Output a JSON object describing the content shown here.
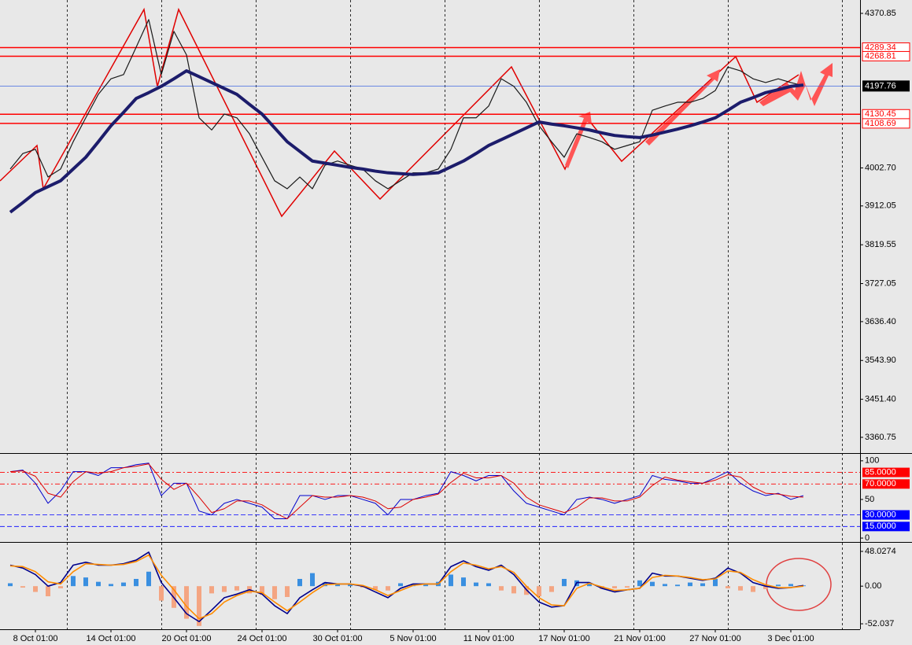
{
  "chart_data": [
    {
      "type": "line",
      "ylim": [
        3325.1,
        4402.7
      ],
      "yticks": [
        4370.85,
        {
          "value": 4002.7,
          "label": "4002.70"
        },
        3912.05,
        3819.55,
        3727.05,
        {
          "value": 3636.4,
          "label": "3636.40"
        },
        {
          "value": 3543.9,
          "label": "3543.90"
        },
        {
          "value": 3451.4,
          "label": "3451.40"
        },
        3360.75
      ],
      "series": [
        {
          "color": "#1a1a1a",
          "width": 1.2,
          "values": [
            4000,
            4037,
            4047,
            3981,
            4000,
            4065,
            4122,
            4178,
            4215,
            4225,
            4290,
            4356,
            4225,
            4328,
            4272,
            4122,
            4093,
            4131,
            4122,
            4084,
            4028,
            3972,
            3953,
            3981,
            3953,
            4009,
            4019,
            4009,
            4000,
            3972,
            3953,
            3972,
            3991,
            3991,
            4000,
            4047,
            4122,
            4122,
            4150,
            4215,
            4197,
            4159,
            4103,
            4065,
            4028,
            4084,
            4075,
            4065,
            4047,
            4056,
            4065,
            4140,
            4150,
            4159,
            4159,
            4168,
            4187,
            4243,
            4234,
            4215,
            4206,
            4215,
            4206,
            4198
          ]
        },
        {
          "color": "#1c1c6b",
          "width": 4,
          "values": [
            3897,
            3920,
            3944,
            3958,
            3972,
            4000,
            4028,
            4065,
            4103,
            4135,
            4168,
            4182,
            4197,
            4215,
            4234,
            4220,
            4206,
            4192,
            4178,
            4154,
            4131,
            4098,
            4065,
            4042,
            4019,
            4014,
            4009,
            4004,
            4000,
            3995,
            3991,
            3989,
            3987,
            3989,
            3991,
            4005,
            4019,
            4037,
            4056,
            4070,
            4084,
            4098,
            4112,
            4107,
            4103,
            4098,
            4093,
            4086,
            4080,
            4077,
            4075,
            4081,
            4088,
            4095,
            4103,
            4112,
            4122,
            4140,
            4159,
            4170,
            4182,
            4189,
            4197,
            4200
          ]
        }
      ],
      "levels": [
        4289.34,
        4268.81,
        4130.45,
        4108.69
      ],
      "level_color": "#ff0000",
      "last_price": 4197.76,
      "last_price_color": "#4169e1"
    },
    {
      "type": "line",
      "ylim": [
        -4,
        109
      ],
      "yticks": [
        100,
        50,
        0
      ],
      "series": [
        {
          "color": "#0000cc",
          "width": 1,
          "values": [
            86,
            88,
            71,
            45,
            61,
            86,
            86,
            81,
            91,
            91,
            95,
            97,
            55,
            71,
            71,
            35,
            30,
            45,
            50,
            45,
            40,
            25,
            25,
            55,
            55,
            50,
            55,
            55,
            50,
            45,
            30,
            50,
            50,
            55,
            58,
            86,
            81,
            74,
            81,
            81,
            61,
            45,
            40,
            35,
            30,
            50,
            53,
            50,
            45,
            50,
            55,
            81,
            76,
            74,
            71,
            71,
            78,
            86,
            71,
            61,
            55,
            58,
            50,
            55
          ]
        },
        {
          "color": "#dd0000",
          "width": 1,
          "values": [
            86,
            87,
            80,
            58,
            53,
            73,
            86,
            84,
            86,
            91,
            93,
            96,
            76,
            63,
            71,
            53,
            33,
            38,
            48,
            48,
            43,
            33,
            25,
            40,
            55,
            53,
            53,
            55,
            53,
            48,
            38,
            40,
            50,
            53,
            57,
            72,
            84,
            78,
            78,
            81,
            71,
            53,
            43,
            38,
            33,
            40,
            52,
            52,
            48,
            48,
            53,
            68,
            79,
            75,
            73,
            71,
            75,
            82,
            79,
            66,
            58,
            57,
            54,
            53
          ]
        }
      ],
      "levels": [
        {
          "value": 85,
          "label": "85.0000",
          "color": "#ff0000"
        },
        {
          "value": 70,
          "label": "70.0000",
          "color": "#ff0000"
        },
        {
          "value": 30,
          "label": "30.0000",
          "color": "#0000ff"
        },
        {
          "value": 15,
          "label": "15.0000",
          "color": "#0000ff"
        }
      ]
    },
    {
      "type": "bar",
      "ylim": [
        -59.6,
        60
      ],
      "yticks": [
        48.0274,
        {
          "value": 0,
          "label": "0.00"
        },
        -52.037
      ],
      "categories": [
        null,
        null,
        "8 Oct 01:00",
        null,
        null,
        null,
        null,
        null,
        "14 Oct 01:00",
        null,
        null,
        null,
        null,
        null,
        "20 Oct 01:00",
        null,
        null,
        null,
        null,
        null,
        "24 Oct 01:00",
        null,
        null,
        null,
        null,
        null,
        "30 Oct 01:00",
        null,
        null,
        null,
        null,
        null,
        "5 Nov 01:00",
        null,
        null,
        null,
        null,
        null,
        "11 Nov 01:00",
        null,
        null,
        null,
        null,
        null,
        "17 Nov 01:00",
        null,
        null,
        null,
        null,
        null,
        "21 Nov 01:00",
        null,
        null,
        null,
        null,
        null,
        "27 Nov 01:00",
        null,
        null,
        null,
        null,
        null,
        "3 Dec 01:00",
        null
      ],
      "values": [
        4,
        -2,
        -8,
        -14,
        -3,
        14,
        12,
        6,
        3,
        5,
        10,
        20,
        -20,
        -30,
        -45,
        -55,
        -10,
        -8,
        -6,
        -10,
        -12,
        -18,
        -15,
        10,
        18,
        5,
        3,
        2,
        -2,
        -5,
        -6,
        4,
        3,
        2,
        6,
        16,
        12,
        5,
        4,
        -6,
        -10,
        -12,
        -14,
        -8,
        10,
        8,
        4,
        -4,
        -3,
        -2,
        8,
        6,
        3,
        2,
        5,
        4,
        10,
        -3,
        -6,
        -8,
        -4,
        2,
        3,
        1
      ],
      "color_positive": "#3a8fe0",
      "color_negative": "#f4a582",
      "series": [
        {
          "color": "#00008b",
          "width": 1.6,
          "values": [
            29,
            25,
            16,
            0,
            5,
            29,
            33,
            29,
            29,
            31,
            36,
            47,
            5,
            -16,
            -38,
            -49,
            -33,
            -16,
            -11,
            -5,
            -11,
            -27,
            -38,
            -16,
            -5,
            5,
            3,
            3,
            0,
            -8,
            -16,
            -3,
            3,
            3,
            3,
            27,
            35,
            27,
            22,
            29,
            16,
            -5,
            -22,
            -29,
            -27,
            5,
            5,
            -3,
            -8,
            -5,
            -3,
            18,
            14,
            14,
            11,
            8,
            11,
            25,
            18,
            5,
            0,
            -3,
            -2,
            1
          ]
        },
        {
          "color": "#ff8c00",
          "width": 1.6,
          "values": [
            28,
            27,
            20,
            6,
            3,
            20,
            31,
            30,
            29,
            30,
            34,
            43,
            15,
            -5,
            -28,
            -45,
            -38,
            -22,
            -13,
            -7,
            -9,
            -22,
            -34,
            -22,
            -9,
            2,
            3,
            3,
            1,
            -5,
            -13,
            -6,
            1,
            3,
            3,
            20,
            32,
            29,
            24,
            27,
            19,
            0,
            -16,
            -26,
            -27,
            -3,
            4,
            -1,
            -6,
            -5,
            -3,
            12,
            15,
            14,
            12,
            9,
            10,
            21,
            19,
            9,
            2,
            -2,
            -2,
            0
          ]
        }
      ]
    }
  ]
}
